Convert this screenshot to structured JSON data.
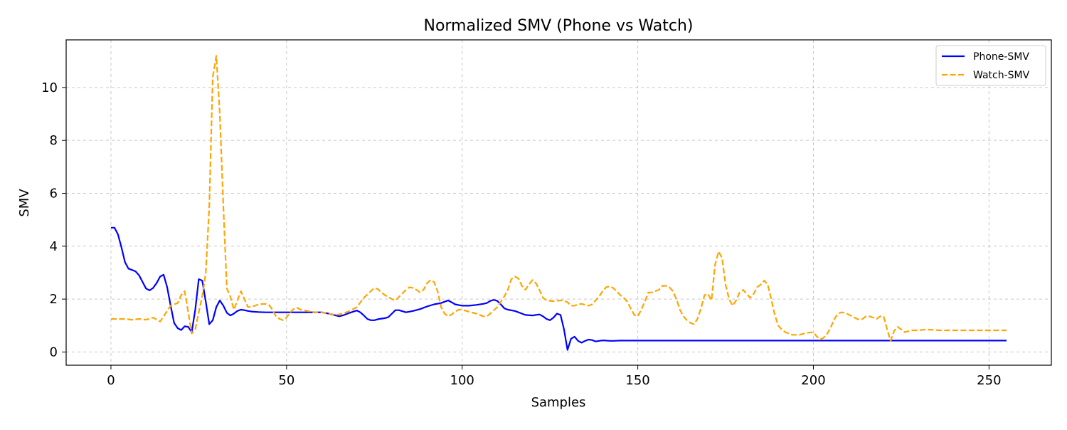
{
  "chart_data": {
    "type": "line",
    "title": "Normalized SMV (Phone vs Watch)",
    "xlabel": "Samples",
    "ylabel": "SMV",
    "xlim": [
      -12.75,
      267.75
    ],
    "ylim": [
      -0.5,
      11.8
    ],
    "x_ticks": [
      0,
      50,
      100,
      150,
      200,
      250
    ],
    "y_ticks": [
      0,
      2,
      4,
      6,
      8,
      10
    ],
    "grid": true,
    "legend_position": "upper-right",
    "series": [
      {
        "name": "Phone-SMV",
        "color": "#0000ff",
        "style": "solid",
        "points": [
          [
            0,
            4.7
          ],
          [
            1,
            4.7
          ],
          [
            2,
            4.45
          ],
          [
            3,
            3.95
          ],
          [
            4,
            3.4
          ],
          [
            5,
            3.15
          ],
          [
            6,
            3.1
          ],
          [
            7,
            3.05
          ],
          [
            8,
            2.9
          ],
          [
            9,
            2.65
          ],
          [
            10,
            2.4
          ],
          [
            11,
            2.33
          ],
          [
            12,
            2.42
          ],
          [
            13,
            2.6
          ],
          [
            14,
            2.85
          ],
          [
            15,
            2.92
          ],
          [
            16,
            2.45
          ],
          [
            17,
            1.75
          ],
          [
            18,
            1.1
          ],
          [
            19,
            0.9
          ],
          [
            20,
            0.83
          ],
          [
            21,
            0.97
          ],
          [
            22,
            0.95
          ],
          [
            23,
            0.75
          ],
          [
            24,
            1.6
          ],
          [
            25,
            2.75
          ],
          [
            26,
            2.7
          ],
          [
            27,
            1.9
          ],
          [
            28,
            1.05
          ],
          [
            29,
            1.2
          ],
          [
            30,
            1.7
          ],
          [
            31,
            1.95
          ],
          [
            32,
            1.75
          ],
          [
            33,
            1.48
          ],
          [
            34,
            1.38
          ],
          [
            35,
            1.45
          ],
          [
            36,
            1.55
          ],
          [
            37,
            1.6
          ],
          [
            38,
            1.58
          ],
          [
            39,
            1.55
          ],
          [
            40,
            1.53
          ],
          [
            42,
            1.51
          ],
          [
            44,
            1.5
          ],
          [
            46,
            1.5
          ],
          [
            50,
            1.5
          ],
          [
            55,
            1.5
          ],
          [
            60,
            1.5
          ],
          [
            62,
            1.45
          ],
          [
            64,
            1.38
          ],
          [
            65,
            1.35
          ],
          [
            66,
            1.38
          ],
          [
            68,
            1.48
          ],
          [
            70,
            1.57
          ],
          [
            71,
            1.5
          ],
          [
            72,
            1.38
          ],
          [
            73,
            1.25
          ],
          [
            74,
            1.2
          ],
          [
            75,
            1.2
          ],
          [
            76,
            1.24
          ],
          [
            78,
            1.28
          ],
          [
            79,
            1.32
          ],
          [
            80,
            1.45
          ],
          [
            81,
            1.58
          ],
          [
            82,
            1.58
          ],
          [
            84,
            1.5
          ],
          [
            86,
            1.55
          ],
          [
            88,
            1.62
          ],
          [
            90,
            1.72
          ],
          [
            92,
            1.8
          ],
          [
            94,
            1.85
          ],
          [
            95,
            1.9
          ],
          [
            96,
            1.95
          ],
          [
            97,
            1.88
          ],
          [
            98,
            1.8
          ],
          [
            100,
            1.75
          ],
          [
            102,
            1.75
          ],
          [
            104,
            1.78
          ],
          [
            106,
            1.82
          ],
          [
            107,
            1.85
          ],
          [
            108,
            1.93
          ],
          [
            109,
            1.97
          ],
          [
            110,
            1.93
          ],
          [
            111,
            1.8
          ],
          [
            112,
            1.65
          ],
          [
            113,
            1.6
          ],
          [
            115,
            1.55
          ],
          [
            117,
            1.45
          ],
          [
            118,
            1.4
          ],
          [
            120,
            1.38
          ],
          [
            122,
            1.42
          ],
          [
            123,
            1.35
          ],
          [
            124,
            1.25
          ],
          [
            125,
            1.2
          ],
          [
            126,
            1.3
          ],
          [
            127,
            1.45
          ],
          [
            128,
            1.4
          ],
          [
            129,
            0.85
          ],
          [
            130,
            0.08
          ],
          [
            131,
            0.5
          ],
          [
            132,
            0.58
          ],
          [
            133,
            0.42
          ],
          [
            134,
            0.35
          ],
          [
            135,
            0.42
          ],
          [
            136,
            0.47
          ],
          [
            137,
            0.45
          ],
          [
            138,
            0.4
          ],
          [
            139,
            0.42
          ],
          [
            140,
            0.44
          ],
          [
            141,
            0.43
          ],
          [
            142,
            0.42
          ],
          [
            143,
            0.42
          ],
          [
            145,
            0.43
          ],
          [
            150,
            0.43
          ],
          [
            160,
            0.43
          ],
          [
            180,
            0.43
          ],
          [
            200,
            0.43
          ],
          [
            220,
            0.43
          ],
          [
            240,
            0.43
          ],
          [
            255,
            0.43
          ]
        ]
      },
      {
        "name": "Watch-SMV",
        "color": "#ffa500",
        "style": "dashed",
        "points": [
          [
            0,
            1.25
          ],
          [
            2,
            1.25
          ],
          [
            4,
            1.25
          ],
          [
            6,
            1.22
          ],
          [
            8,
            1.25
          ],
          [
            10,
            1.22
          ],
          [
            12,
            1.3
          ],
          [
            14,
            1.15
          ],
          [
            16,
            1.55
          ],
          [
            17,
            1.75
          ],
          [
            19,
            1.85
          ],
          [
            20,
            2.15
          ],
          [
            21,
            2.3
          ],
          [
            22,
            1.5
          ],
          [
            23,
            0.7
          ],
          [
            24,
            0.85
          ],
          [
            25,
            1.5
          ],
          [
            26,
            2.1
          ],
          [
            27,
            3.0
          ],
          [
            28,
            5.5
          ],
          [
            29,
            10.4
          ],
          [
            30,
            11.2
          ],
          [
            31,
            9.0
          ],
          [
            32,
            5.5
          ],
          [
            33,
            2.4
          ],
          [
            34,
            2.1
          ],
          [
            35,
            1.6
          ],
          [
            36,
            1.95
          ],
          [
            37,
            2.3
          ],
          [
            38,
            2.0
          ],
          [
            39,
            1.7
          ],
          [
            40,
            1.7
          ],
          [
            42,
            1.8
          ],
          [
            44,
            1.82
          ],
          [
            45,
            1.78
          ],
          [
            46,
            1.6
          ],
          [
            47,
            1.35
          ],
          [
            48,
            1.25
          ],
          [
            49,
            1.2
          ],
          [
            50,
            1.3
          ],
          [
            51,
            1.5
          ],
          [
            52,
            1.62
          ],
          [
            53,
            1.68
          ],
          [
            54,
            1.6
          ],
          [
            56,
            1.55
          ],
          [
            58,
            1.5
          ],
          [
            60,
            1.5
          ],
          [
            62,
            1.45
          ],
          [
            64,
            1.4
          ],
          [
            66,
            1.45
          ],
          [
            68,
            1.55
          ],
          [
            70,
            1.7
          ],
          [
            72,
            2.05
          ],
          [
            74,
            2.3
          ],
          [
            75,
            2.42
          ],
          [
            76,
            2.38
          ],
          [
            77,
            2.25
          ],
          [
            78,
            2.15
          ],
          [
            80,
            2.0
          ],
          [
            81,
            1.95
          ],
          [
            82,
            2.08
          ],
          [
            84,
            2.35
          ],
          [
            85,
            2.45
          ],
          [
            86,
            2.42
          ],
          [
            87,
            2.35
          ],
          [
            88,
            2.25
          ],
          [
            89,
            2.35
          ],
          [
            90,
            2.6
          ],
          [
            91,
            2.72
          ],
          [
            92,
            2.65
          ],
          [
            93,
            2.3
          ],
          [
            94,
            1.7
          ],
          [
            95,
            1.45
          ],
          [
            96,
            1.35
          ],
          [
            97,
            1.42
          ],
          [
            98,
            1.52
          ],
          [
            99,
            1.6
          ],
          [
            100,
            1.6
          ],
          [
            102,
            1.52
          ],
          [
            104,
            1.45
          ],
          [
            106,
            1.35
          ],
          [
            107,
            1.35
          ],
          [
            108,
            1.45
          ],
          [
            110,
            1.7
          ],
          [
            112,
            2.1
          ],
          [
            113,
            2.35
          ],
          [
            114,
            2.75
          ],
          [
            115,
            2.85
          ],
          [
            116,
            2.78
          ],
          [
            117,
            2.5
          ],
          [
            118,
            2.35
          ],
          [
            119,
            2.55
          ],
          [
            120,
            2.72
          ],
          [
            121,
            2.6
          ],
          [
            122,
            2.35
          ],
          [
            123,
            2.05
          ],
          [
            124,
            1.95
          ],
          [
            126,
            1.92
          ],
          [
            128,
            1.95
          ],
          [
            129,
            1.95
          ],
          [
            130,
            1.88
          ],
          [
            131,
            1.75
          ],
          [
            132,
            1.75
          ],
          [
            133,
            1.8
          ],
          [
            134,
            1.82
          ],
          [
            135,
            1.78
          ],
          [
            136,
            1.75
          ],
          [
            137,
            1.8
          ],
          [
            138,
            1.95
          ],
          [
            139,
            2.1
          ],
          [
            140,
            2.3
          ],
          [
            141,
            2.45
          ],
          [
            142,
            2.48
          ],
          [
            143,
            2.42
          ],
          [
            144,
            2.3
          ],
          [
            145,
            2.15
          ],
          [
            146,
            2.05
          ],
          [
            147,
            1.9
          ],
          [
            148,
            1.65
          ],
          [
            149,
            1.4
          ],
          [
            150,
            1.35
          ],
          [
            151,
            1.6
          ],
          [
            152,
            1.9
          ],
          [
            153,
            2.25
          ],
          [
            154,
            2.25
          ],
          [
            155,
            2.3
          ],
          [
            156,
            2.35
          ],
          [
            157,
            2.5
          ],
          [
            158,
            2.5
          ],
          [
            159,
            2.45
          ],
          [
            160,
            2.3
          ],
          [
            161,
            2.0
          ],
          [
            162,
            1.6
          ],
          [
            163,
            1.35
          ],
          [
            164,
            1.2
          ],
          [
            165,
            1.1
          ],
          [
            166,
            1.05
          ],
          [
            167,
            1.25
          ],
          [
            168,
            1.65
          ],
          [
            169,
            2.15
          ],
          [
            170,
            2.2
          ],
          [
            171,
            1.95
          ],
          [
            172,
            3.3
          ],
          [
            173,
            3.8
          ],
          [
            174,
            3.55
          ],
          [
            175,
            2.55
          ],
          [
            176,
            2.0
          ],
          [
            177,
            1.75
          ],
          [
            178,
            1.95
          ],
          [
            179,
            2.25
          ],
          [
            180,
            2.35
          ],
          [
            181,
            2.2
          ],
          [
            182,
            2.05
          ],
          [
            183,
            2.2
          ],
          [
            184,
            2.45
          ],
          [
            185,
            2.55
          ],
          [
            186,
            2.7
          ],
          [
            187,
            2.55
          ],
          [
            188,
            2.0
          ],
          [
            189,
            1.4
          ],
          [
            190,
            1.0
          ],
          [
            191,
            0.85
          ],
          [
            192,
            0.75
          ],
          [
            194,
            0.65
          ],
          [
            196,
            0.65
          ],
          [
            198,
            0.72
          ],
          [
            200,
            0.75
          ],
          [
            201,
            0.58
          ],
          [
            202,
            0.48
          ],
          [
            203,
            0.55
          ],
          [
            204,
            0.7
          ],
          [
            205,
            0.95
          ],
          [
            206,
            1.25
          ],
          [
            207,
            1.45
          ],
          [
            208,
            1.5
          ],
          [
            209,
            1.48
          ],
          [
            210,
            1.42
          ],
          [
            211,
            1.35
          ],
          [
            212,
            1.28
          ],
          [
            213,
            1.22
          ],
          [
            214,
            1.25
          ],
          [
            215,
            1.35
          ],
          [
            216,
            1.35
          ],
          [
            217,
            1.3
          ],
          [
            218,
            1.25
          ],
          [
            219,
            1.35
          ],
          [
            220,
            1.35
          ],
          [
            221,
            0.85
          ],
          [
            222,
            0.42
          ],
          [
            223,
            0.8
          ],
          [
            224,
            0.95
          ],
          [
            225,
            0.85
          ],
          [
            226,
            0.75
          ],
          [
            228,
            0.82
          ],
          [
            230,
            0.82
          ],
          [
            232,
            0.85
          ],
          [
            236,
            0.82
          ],
          [
            240,
            0.82
          ],
          [
            245,
            0.82
          ],
          [
            250,
            0.82
          ],
          [
            255,
            0.82
          ]
        ]
      }
    ]
  }
}
